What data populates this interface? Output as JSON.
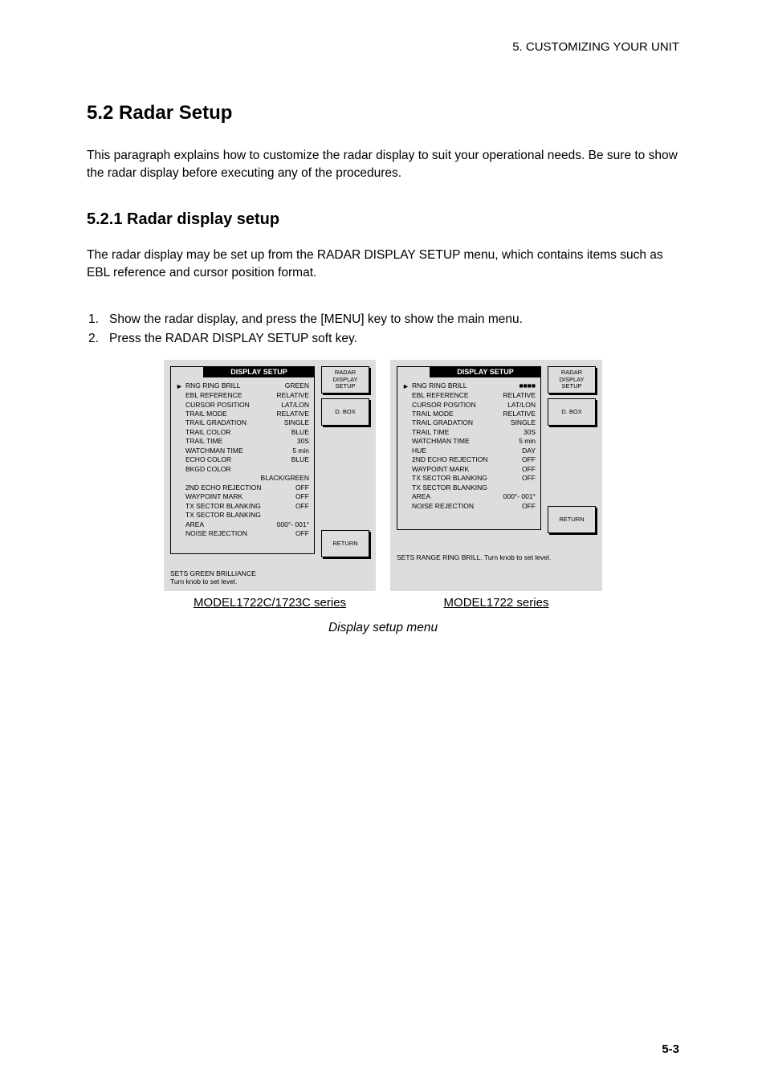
{
  "header": {
    "chapter": "5. CUSTOMIZING YOUR UNIT"
  },
  "sec1": {
    "title": "5.2 Radar Setup",
    "intro": "This paragraph explains how to customize the radar display to suit your operational needs. Be sure to show the radar display before executing any of the procedures."
  },
  "sec2": {
    "title": "5.2.1 Radar display setup",
    "intro": "The radar display may be set up from the RADAR DISPLAY SETUP menu, which contains items such as EBL reference and cursor position format.",
    "step1": "Show the radar display, and press the [MENU] key to show the main menu.",
    "step2": "Press the RADAR DISPLAY SETUP soft key."
  },
  "panelA": {
    "menuTitle": "DISPLAY SETUP",
    "rows": [
      {
        "label": "RNG RING BRILL",
        "val": "GREEN",
        "arrow": "►"
      },
      {
        "label": "EBL REFERENCE",
        "val": "RELATIVE"
      },
      {
        "label": "CURSOR POSITION",
        "val": "LAT/LON"
      },
      {
        "label": "TRAIL MODE",
        "val": "RELATIVE"
      },
      {
        "label": "TRAIL GRADATION",
        "val": "SINGLE"
      },
      {
        "label": "TRAIL COLOR",
        "val": "BLUE"
      },
      {
        "label": "TRAIL TIME",
        "val": "30S"
      },
      {
        "label": "WATCHMAN TIME",
        "val": "5 min"
      },
      {
        "label": "ECHO COLOR",
        "val": "BLUE"
      },
      {
        "label": "BKGD COLOR",
        "val": " "
      },
      {
        "label": "",
        "val": "BLACK/GREEN"
      },
      {
        "label": "2ND ECHO REJECTION",
        "val": "OFF"
      },
      {
        "label": "WAYPOINT MARK",
        "val": "OFF"
      },
      {
        "label": "TX SECTOR BLANKING",
        "val": "OFF"
      },
      {
        "label": "TX SECTOR BLANKING",
        "val": " "
      },
      {
        "label": "  AREA",
        "val": "000°- 001°"
      },
      {
        "label": "NOISE REJECTION",
        "val": "OFF"
      }
    ],
    "softkeys": [
      "RADAR\nDISPLAY\nSETUP",
      "D. BOX"
    ],
    "softkeyBottom": "RETURN",
    "hint": "SETS GREEN BRILLIANCE\nTurn knob to set level.",
    "caption": "MODEL1722C/1723C series"
  },
  "panelB": {
    "menuTitle": "DISPLAY SETUP",
    "rows": [
      {
        "label": "RNG RING BRILL",
        "val": "■■■■",
        "arrow": "►"
      },
      {
        "label": "EBL REFERENCE",
        "val": "RELATIVE"
      },
      {
        "label": "CURSOR POSITION",
        "val": "LAT/LON"
      },
      {
        "label": "TRAIL MODE",
        "val": "RELATIVE"
      },
      {
        "label": "TRAIL GRADATION",
        "val": "SINGLE"
      },
      {
        "label": "TRAIL TIME",
        "val": "30S"
      },
      {
        "label": "WATCHMAN TIME",
        "val": "5 min"
      },
      {
        "label": "HUE",
        "val": "DAY"
      },
      {
        "label": "2ND ECHO REJECTION",
        "val": "OFF"
      },
      {
        "label": "WAYPOINT MARK",
        "val": "OFF"
      },
      {
        "label": "TX SECTOR BLANKING",
        "val": "OFF"
      },
      {
        "label": "TX SECTOR BLANKING",
        "val": " "
      },
      {
        "label": "  AREA",
        "val": "000°- 001°"
      },
      {
        "label": "NOISE REJECTION",
        "val": "OFF"
      }
    ],
    "softkeys": [
      "RADAR\nDISPLAY\nSETUP",
      "D. BOX"
    ],
    "softkeyBottom": "RETURN",
    "hint": "SETS RANGE RING BRILL.\nTurn knob to set level.",
    "caption": "MODEL1722 series"
  },
  "figTitle": "Display setup menu",
  "pageNum": "5-3"
}
